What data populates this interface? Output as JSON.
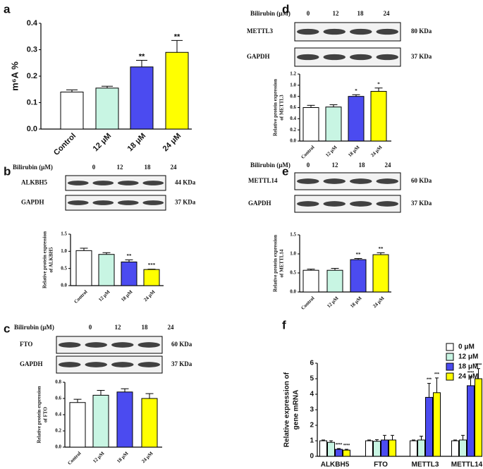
{
  "chart_data": [
    {
      "panel": "a",
      "type": "bar",
      "categories": [
        "Control",
        "12 μM",
        "18 μM",
        "24 μM"
      ],
      "values": [
        0.14,
        0.155,
        0.235,
        0.29
      ],
      "errors": [
        0.008,
        0.007,
        0.025,
        0.045
      ],
      "colors": [
        "#ffffff",
        "#c8f5e3",
        "#4b4bf0",
        "#ffff00"
      ],
      "ylim": [
        0,
        0.4
      ],
      "yticks": [
        {
          "value": 0,
          "label": "0.0"
        },
        0.1,
        0.2,
        0.3,
        0.4
      ],
      "ylabel": [
        "m⁶A %"
      ],
      "annotations": [
        null,
        null,
        "**",
        "**"
      ]
    },
    {
      "panel": "b",
      "type": "bar",
      "blot": {
        "label": "Bilirubin (μM)",
        "doses": [
          "0",
          "12",
          "18",
          "24"
        ],
        "rows": [
          {
            "protein": "ALKBH5",
            "size": "44 KDa"
          },
          {
            "protein": "GAPDH",
            "size": "37 KDa"
          }
        ]
      },
      "categories": [
        "Control",
        "12 μM",
        "18 μM",
        "24 μM"
      ],
      "values": [
        1.02,
        0.91,
        0.69,
        0.47
      ],
      "errors": [
        0.07,
        0.05,
        0.06,
        0.01
      ],
      "colors": [
        "#ffffff",
        "#c8f5e3",
        "#4b4bf0",
        "#ffff00"
      ],
      "ylim": [
        0,
        1.5
      ],
      "yticks": [
        {
          "value": 0,
          "label": "0.0"
        },
        0.5,
        {
          "value": 1,
          "label": "1.0"
        },
        1.5
      ],
      "ylabel": [
        "Relative protein expression",
        "of ALKBH5"
      ],
      "annotations": [
        null,
        null,
        "**",
        "***"
      ]
    },
    {
      "panel": "c",
      "type": "bar",
      "blot": {
        "label": "Bilirubin (μM)",
        "doses": [
          "0",
          "12",
          "18",
          "24"
        ],
        "rows": [
          {
            "protein": "FTO",
            "size": "60 KDa"
          },
          {
            "protein": "GAPDH",
            "size": "37 KDa"
          }
        ]
      },
      "categories": [
        "Control",
        "12 μM",
        "18 μM",
        "24 μM"
      ],
      "values": [
        0.55,
        0.64,
        0.68,
        0.6
      ],
      "errors": [
        0.04,
        0.06,
        0.04,
        0.06
      ],
      "colors": [
        "#ffffff",
        "#c8f5e3",
        "#4b4bf0",
        "#ffff00"
      ],
      "ylim": [
        0,
        0.8
      ],
      "yticks": [
        {
          "value": 0,
          "label": "0.0"
        },
        0.2,
        0.4,
        0.6,
        0.8
      ],
      "ylabel": [
        "Relative protein expression",
        "of FTO"
      ]
    },
    {
      "panel": "d",
      "type": "bar",
      "blot": {
        "label": "Bilirubin (μM)",
        "doses": [
          "0",
          "12",
          "18",
          "24"
        ],
        "rows": [
          {
            "protein": "METTL3",
            "size": "80 KDa"
          },
          {
            "protein": "GAPDH",
            "size": "37 KDa"
          }
        ]
      },
      "categories": [
        "Control",
        "12 μM",
        "18 μM",
        "24 μM"
      ],
      "values": [
        0.6,
        0.61,
        0.8,
        0.89
      ],
      "errors": [
        0.04,
        0.04,
        0.03,
        0.06
      ],
      "colors": [
        "#ffffff",
        "#c8f5e3",
        "#4b4bf0",
        "#ffff00"
      ],
      "ylim": [
        0,
        1.2
      ],
      "yticks": [
        {
          "value": 0,
          "label": "0.0"
        },
        0.2,
        0.4,
        0.6,
        0.8,
        {
          "value": 1,
          "label": "1.0"
        },
        1.2
      ],
      "ylabel": [
        "Relative protein expression",
        "of METTL3"
      ],
      "annotations": [
        null,
        null,
        "*",
        "*"
      ]
    },
    {
      "panel": "e",
      "type": "bar",
      "blot": {
        "label": "Bilirubin (μM)",
        "doses": [
          "0",
          "12",
          "18",
          "24"
        ],
        "rows": [
          {
            "protein": "METTL14",
            "size": "60 KDa"
          },
          {
            "protein": "GAPDH",
            "size": "37 KDa"
          }
        ]
      },
      "categories": [
        "Control",
        "12 μM",
        "18 μM",
        "24 μM"
      ],
      "values": [
        0.57,
        0.57,
        0.85,
        0.98
      ],
      "errors": [
        0.03,
        0.05,
        0.03,
        0.05
      ],
      "colors": [
        "#ffffff",
        "#c8f5e3",
        "#4b4bf0",
        "#ffff00"
      ],
      "ylim": [
        0,
        1.5
      ],
      "yticks": [
        {
          "value": 0,
          "label": "0.0"
        },
        0.5,
        {
          "value": 1,
          "label": "1.0"
        },
        1.5
      ],
      "ylabel": [
        "Relative protein expression",
        "of METTL14"
      ],
      "annotations": [
        null,
        null,
        "**",
        "**"
      ]
    },
    {
      "panel": "f",
      "type": "bar",
      "categories": [
        "ALKBH5",
        "FTO",
        "METTL3",
        "METTL14"
      ],
      "series": [
        {
          "name": "0 μM",
          "color": "#ffffff",
          "values": [
            1,
            1,
            1,
            1
          ],
          "errors": [
            0.05,
            0.05,
            0.05,
            0.05
          ]
        },
        {
          "name": "12 μM",
          "color": "#c8f5e3",
          "values": [
            0.9,
            0.97,
            1.05,
            1.05
          ],
          "errors": [
            0.1,
            0.1,
            0.25,
            0.3
          ]
        },
        {
          "name": "18 μM",
          "color": "#4b4bf0",
          "values": [
            0.45,
            1.05,
            3.8,
            4.55
          ],
          "errors": [
            0.05,
            0.3,
            0.9,
            0.6
          ],
          "annotations": [
            "****",
            null,
            "***",
            "****"
          ]
        },
        {
          "name": "24 μM",
          "color": "#ffff00",
          "values": [
            0.4,
            1.05,
            4.1,
            5.0
          ],
          "errors": [
            0.05,
            0.3,
            0.95,
            0.65
          ],
          "annotations": [
            "****",
            null,
            "***",
            "****"
          ]
        }
      ],
      "ylim": [
        0,
        6
      ],
      "yticks": [
        0,
        1,
        2,
        3,
        4,
        5,
        6
      ],
      "ylabel": [
        "Relative expression of",
        "gene mRNA"
      ],
      "legend": "upper right"
    }
  ]
}
